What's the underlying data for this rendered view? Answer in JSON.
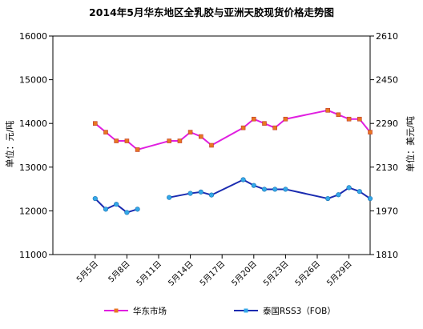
{
  "chart_data": {
    "type": "line",
    "title": "2014年5月华东地区全乳胶与亚洲天胶现货价格走势图",
    "ylabel_left": "单位：元/吨",
    "ylabel_right": "单位：美元/吨",
    "ylim_left": [
      11000,
      16000
    ],
    "yticks_left": [
      "11000",
      "12000",
      "13000",
      "14000",
      "15000",
      "16000"
    ],
    "ylim_right": [
      1810,
      2610
    ],
    "yticks_right": [
      "1810",
      "1970",
      "2130",
      "2290",
      "2450",
      "2610"
    ],
    "x_range": [
      1,
      31
    ],
    "x_ticks": [
      {
        "day": 5,
        "label": "5月5日"
      },
      {
        "day": 8,
        "label": "5月8日"
      },
      {
        "day": 11,
        "label": "5月11日"
      },
      {
        "day": 14,
        "label": "5月14日"
      },
      {
        "day": 17,
        "label": "5月17日"
      },
      {
        "day": 20,
        "label": "5月20日"
      },
      {
        "day": 23,
        "label": "5月23日"
      },
      {
        "day": 26,
        "label": "5月26日"
      },
      {
        "day": 29,
        "label": "5月29日"
      }
    ],
    "grid": false,
    "legend_position": "bottom",
    "series": [
      {
        "name": "华东市场",
        "axis": "left",
        "color": "#e01fe0",
        "marker_color": "#e87722",
        "points": [
          {
            "day": 5,
            "value": 14000
          },
          {
            "day": 6,
            "value": 13800
          },
          {
            "day": 7,
            "value": 13600
          },
          {
            "day": 8,
            "value": 13600
          },
          {
            "day": 9,
            "value": 13400
          },
          {
            "day": 12,
            "value": 13600
          },
          {
            "day": 13,
            "value": 13600
          },
          {
            "day": 14,
            "value": 13800
          },
          {
            "day": 15,
            "value": 13700
          },
          {
            "day": 16,
            "value": 13500
          },
          {
            "day": 19,
            "value": 13900
          },
          {
            "day": 20,
            "value": 14100
          },
          {
            "day": 21,
            "value": 14000
          },
          {
            "day": 22,
            "value": 13900
          },
          {
            "day": 23,
            "value": 14100
          },
          {
            "day": 27,
            "value": 14300
          },
          {
            "day": 28,
            "value": 14200
          },
          {
            "day": 29,
            "value": 14100
          },
          {
            "day": 30,
            "value": 14100
          },
          {
            "day": 31,
            "value": 13800
          }
        ]
      },
      {
        "name": "泰国RSS3（FOB）",
        "axis": "right",
        "color": "#1a2bb0",
        "marker_color": "#33a8e8",
        "points": [
          {
            "day": 5,
            "value": 2015
          },
          {
            "day": 6,
            "value": 1976
          },
          {
            "day": 7,
            "value": 1994
          },
          {
            "day": 8,
            "value": 1964
          },
          {
            "day": 9,
            "value": 1976
          },
          {
            "day": 12,
            "value": 2019,
            "break_before": true
          },
          {
            "day": 14,
            "value": 2034
          },
          {
            "day": 15,
            "value": 2039
          },
          {
            "day": 16,
            "value": 2028
          },
          {
            "day": 19,
            "value": 2084
          },
          {
            "day": 20,
            "value": 2063
          },
          {
            "day": 21,
            "value": 2049
          },
          {
            "day": 22,
            "value": 2049
          },
          {
            "day": 23,
            "value": 2049
          },
          {
            "day": 27,
            "value": 2015
          },
          {
            "day": 28,
            "value": 2029
          },
          {
            "day": 29,
            "value": 2055
          },
          {
            "day": 30,
            "value": 2041
          },
          {
            "day": 31,
            "value": 2015
          }
        ]
      }
    ]
  }
}
